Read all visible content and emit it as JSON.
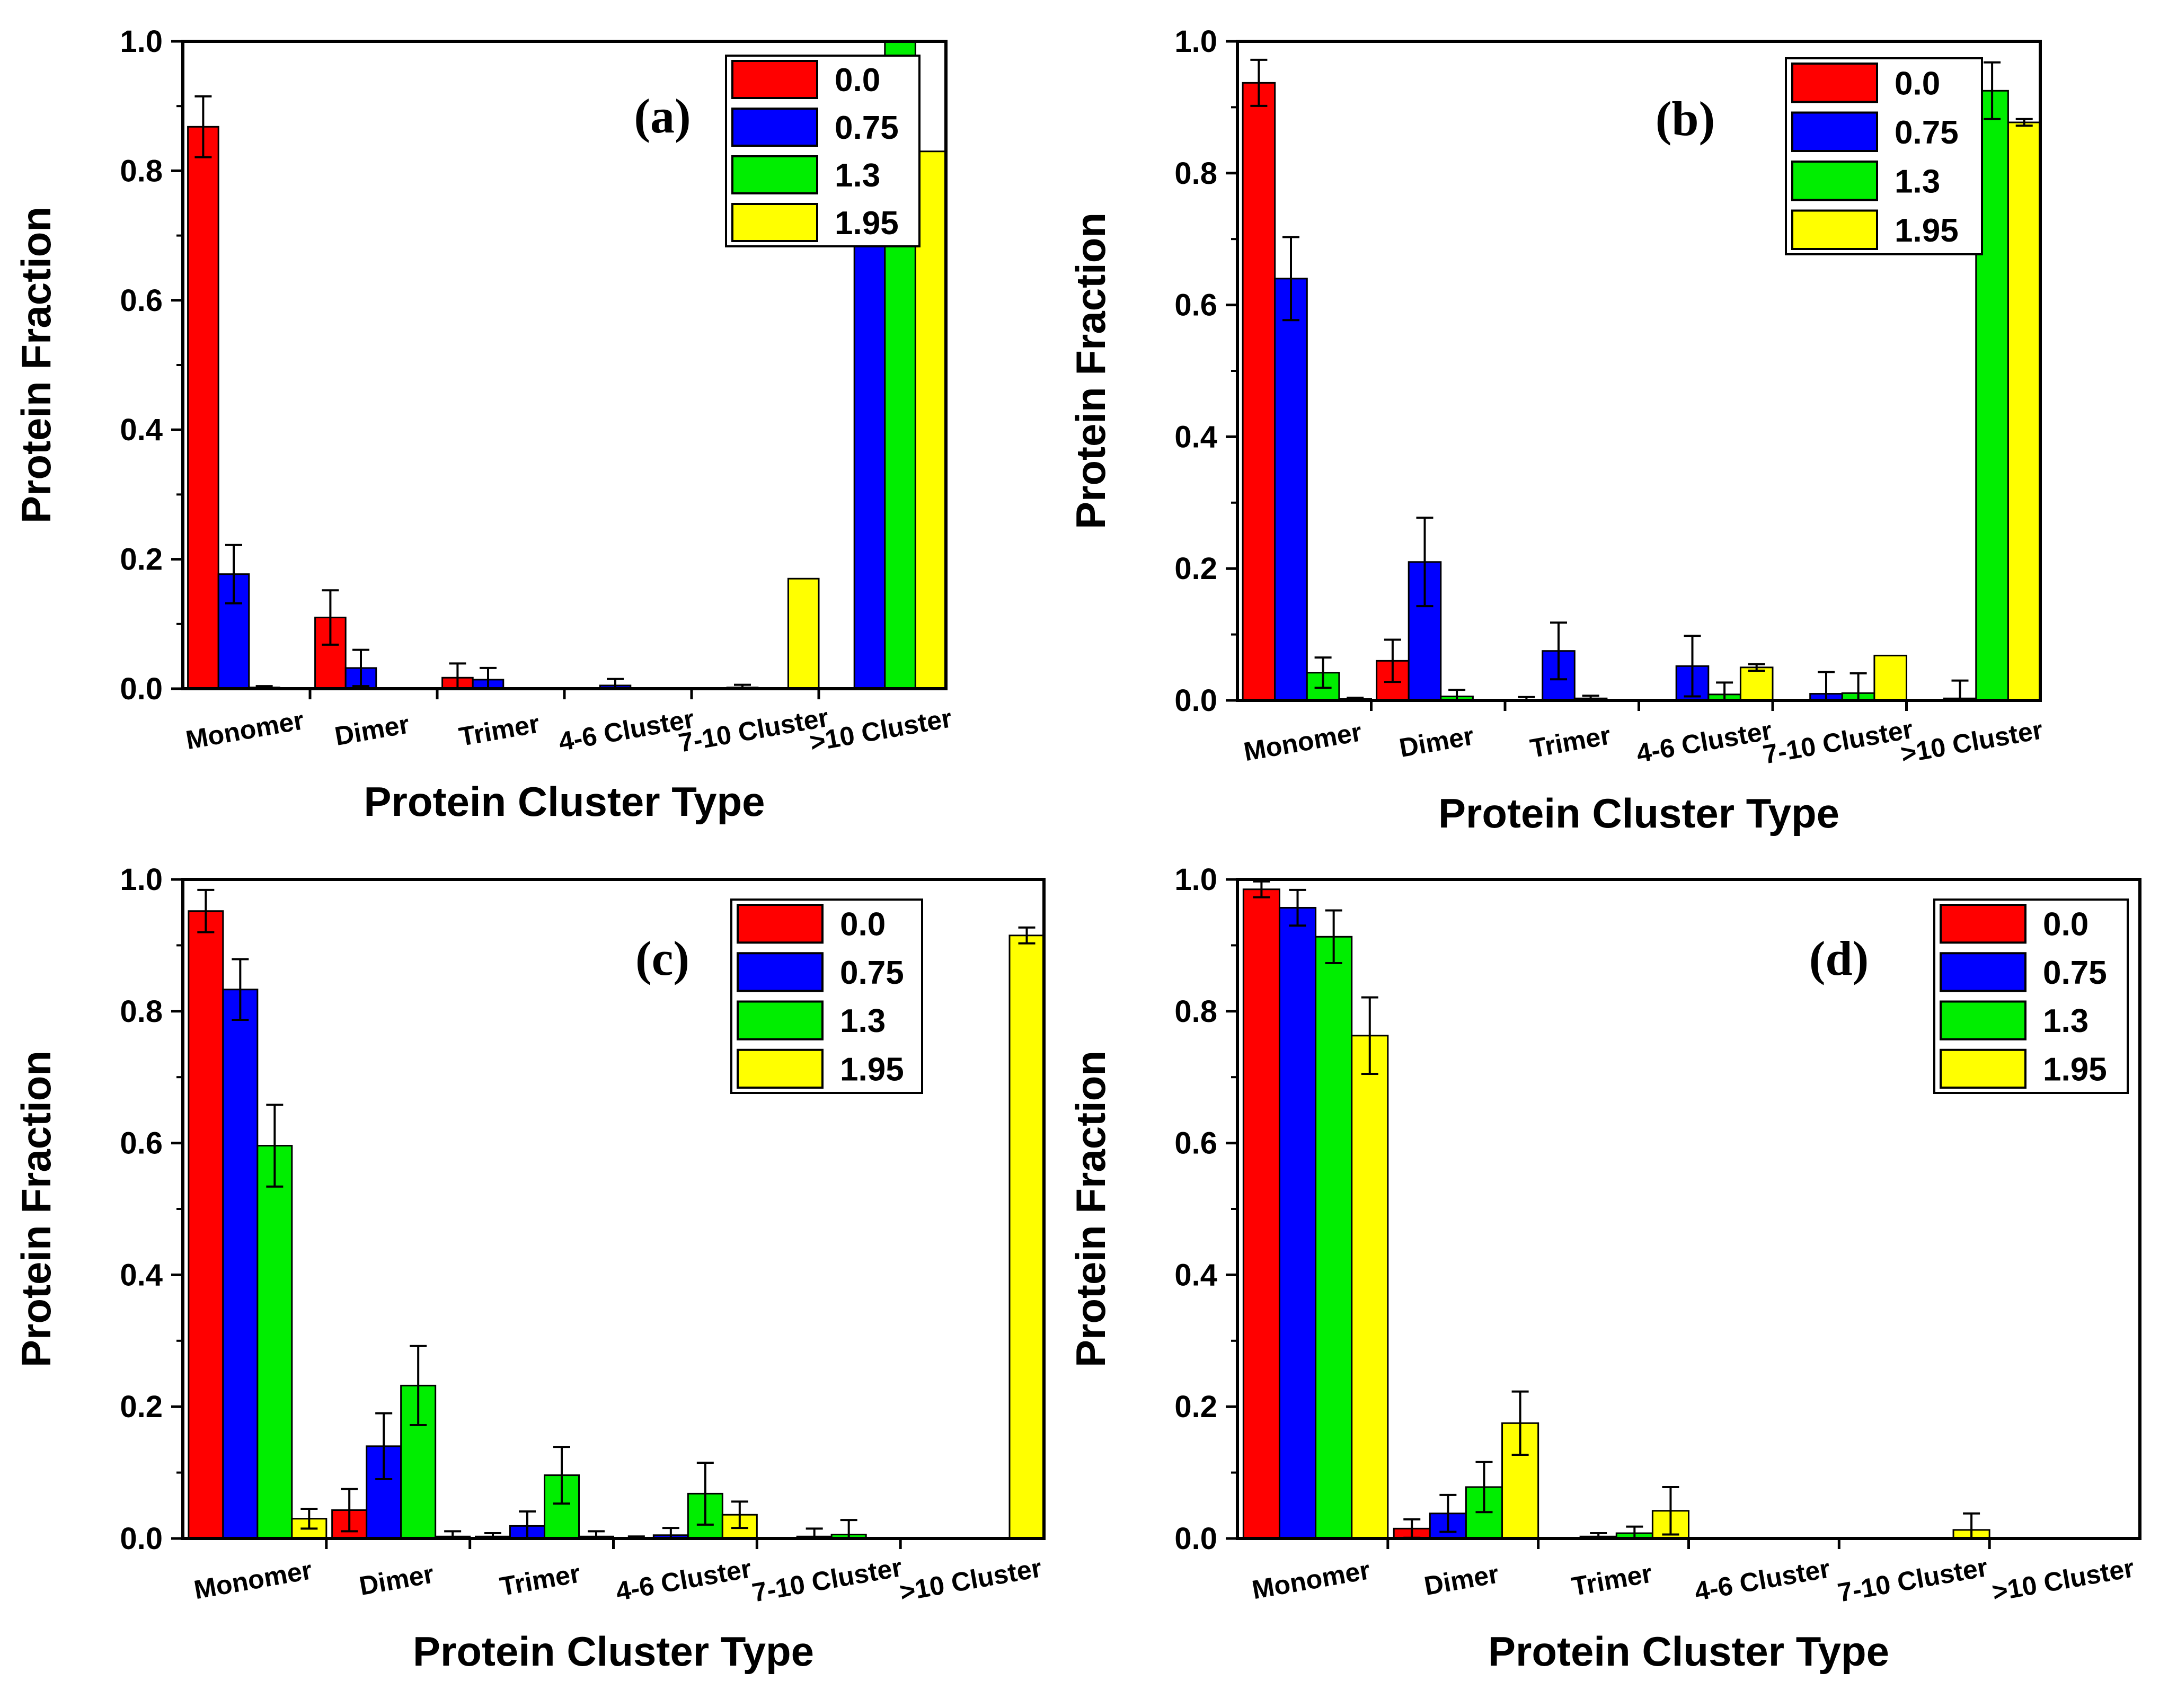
{
  "colors": {
    "0.0": "#ff0000",
    "0.75": "#0000ff",
    "1.3": "#00ee00",
    "1.95": "#ffff00"
  },
  "chart_data": [
    {
      "type": "bar",
      "panel_label": "(a)",
      "xlabel": "Protein Cluster Type",
      "ylabel": "Protein Fraction",
      "ylim": [
        0,
        1.0
      ],
      "yticks": [
        "0.0",
        "0.2",
        "0.4",
        "0.6",
        "0.8",
        "1.0"
      ],
      "categories": [
        "Monomer",
        "Dimer",
        "Trimer",
        "4-6 Cluster",
        "7-10 Cluster",
        ">10 Cluster"
      ],
      "legend_position": "top-right",
      "series": [
        {
          "name": "0.0",
          "values": [
            0.868,
            0.11,
            0.017,
            0.0,
            0.0,
            0.0
          ],
          "errors": [
            0.047,
            0.042,
            0.022,
            0.0,
            0.0,
            0.0
          ]
        },
        {
          "name": "0.75",
          "values": [
            0.177,
            0.032,
            0.014,
            0.005,
            0.002,
            0.77
          ],
          "errors": [
            0.045,
            0.028,
            0.018,
            0.01,
            0.004,
            0.067
          ]
        },
        {
          "name": "1.3",
          "values": [
            0.002,
            0.0,
            0.0,
            0.0,
            0.0,
            1.0
          ],
          "errors": [
            0.002,
            0.0,
            0.0,
            0.0,
            0.0,
            0.0
          ]
        },
        {
          "name": "1.95",
          "values": [
            0.0,
            0.0,
            0.0,
            0.0,
            0.17,
            0.83
          ],
          "errors": [
            0.0,
            0.0,
            0.0,
            0.0,
            0.0,
            0.0
          ]
        }
      ]
    },
    {
      "type": "bar",
      "panel_label": "(b)",
      "xlabel": "Protein Cluster Type",
      "ylabel": "Protein Fraction",
      "ylim": [
        0,
        1.0
      ],
      "yticks": [
        "0.0",
        "0.2",
        "0.4",
        "0.6",
        "0.8",
        "1.0"
      ],
      "categories": [
        "Monomer",
        "Dimer",
        "Trimer",
        "4-6 Cluster",
        "7-10 Cluster",
        ">10 Cluster"
      ],
      "legend_position": "top-center",
      "series": [
        {
          "name": "0.0",
          "values": [
            0.937,
            0.06,
            0.0,
            0.0,
            0.0,
            0.0
          ],
          "errors": [
            0.035,
            0.032,
            0.005,
            0.0,
            0.0,
            0.0
          ]
        },
        {
          "name": "0.75",
          "values": [
            0.64,
            0.21,
            0.075,
            0.052,
            0.01,
            0.003
          ],
          "errors": [
            0.063,
            0.067,
            0.043,
            0.046,
            0.033,
            0.027
          ]
        },
        {
          "name": "1.3",
          "values": [
            0.042,
            0.006,
            0.003,
            0.009,
            0.011,
            0.925
          ],
          "errors": [
            0.023,
            0.01,
            0.004,
            0.018,
            0.03,
            0.043
          ]
        },
        {
          "name": "1.95",
          "values": [
            0.002,
            0.0,
            0.0,
            0.05,
            0.068,
            0.877
          ],
          "errors": [
            0.002,
            0.0,
            0.0,
            0.005,
            0.0,
            0.005
          ]
        }
      ]
    },
    {
      "type": "bar",
      "panel_label": "(c)",
      "xlabel": "Protein Cluster Type",
      "ylabel": "Protein Fraction",
      "ylim": [
        0,
        1.0
      ],
      "yticks": [
        "0.0",
        "0.2",
        "0.4",
        "0.6",
        "0.8",
        "1.0"
      ],
      "categories": [
        "Monomer",
        "Dimer",
        "Trimer",
        "4-6 Cluster",
        "7-10 Cluster",
        ">10 Cluster"
      ],
      "legend_position": "top-right",
      "series": [
        {
          "name": "0.0",
          "values": [
            0.952,
            0.043,
            0.003,
            0.0,
            0.0,
            0.0
          ],
          "errors": [
            0.032,
            0.032,
            0.005,
            0.003,
            0.0,
            0.0
          ]
        },
        {
          "name": "0.75",
          "values": [
            0.833,
            0.14,
            0.019,
            0.005,
            0.003,
            0.0
          ],
          "errors": [
            0.046,
            0.05,
            0.022,
            0.011,
            0.012,
            0.0
          ]
        },
        {
          "name": "1.3",
          "values": [
            0.596,
            0.232,
            0.096,
            0.068,
            0.006,
            0.0
          ],
          "errors": [
            0.062,
            0.06,
            0.043,
            0.047,
            0.022,
            0.0
          ]
        },
        {
          "name": "1.95",
          "values": [
            0.03,
            0.003,
            0.003,
            0.036,
            0.0,
            0.915
          ],
          "errors": [
            0.015,
            0.008,
            0.008,
            0.02,
            0.0,
            0.012
          ]
        }
      ]
    },
    {
      "type": "bar",
      "panel_label": "(d)",
      "xlabel": "Protein Cluster Type",
      "ylabel": "Protein Fraction",
      "ylim": [
        0,
        1.0
      ],
      "yticks": [
        "0.0",
        "0.2",
        "0.4",
        "0.6",
        "0.8",
        "1.0"
      ],
      "categories": [
        "Monomer",
        "Dimer",
        "Trimer",
        "4-6 Cluster",
        "7-10 Cluster",
        ">10 Cluster"
      ],
      "legend_position": "top-right",
      "series": [
        {
          "name": "0.0",
          "values": [
            0.985,
            0.015,
            0.0,
            0.0,
            0.0,
            0.0
          ],
          "errors": [
            0.012,
            0.014,
            0.0,
            0.0,
            0.0,
            0.0
          ]
        },
        {
          "name": "0.75",
          "values": [
            0.957,
            0.038,
            0.003,
            0.0,
            0.0,
            0.0
          ],
          "errors": [
            0.027,
            0.028,
            0.005,
            0.0,
            0.0,
            0.0
          ]
        },
        {
          "name": "1.3",
          "values": [
            0.913,
            0.078,
            0.008,
            0.0,
            0.0,
            0.0
          ],
          "errors": [
            0.04,
            0.038,
            0.01,
            0.0,
            0.0,
            0.0
          ]
        },
        {
          "name": "1.95",
          "values": [
            0.763,
            0.175,
            0.042,
            0.0,
            0.013,
            0.0
          ],
          "errors": [
            0.058,
            0.048,
            0.036,
            0.0,
            0.025,
            0.0
          ]
        }
      ]
    }
  ]
}
